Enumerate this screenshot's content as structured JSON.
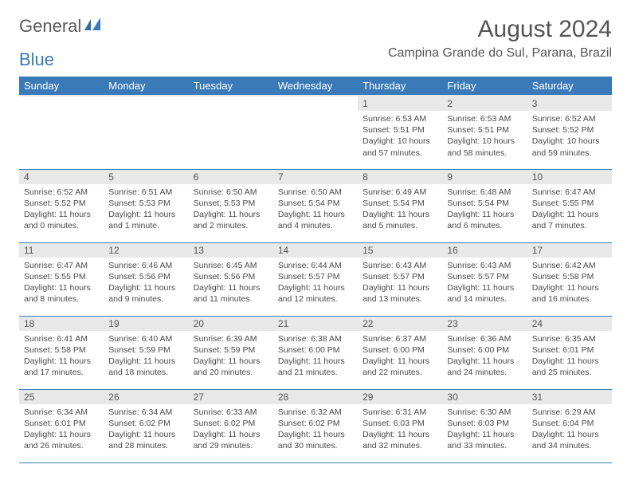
{
  "logo": {
    "word1": "General",
    "word2": "Blue"
  },
  "colors": {
    "brand_blue": "#3a7ab8",
    "header_gray": "#e8e8e8",
    "text": "#4a4a4a",
    "row_border": "#3a7ab8"
  },
  "title": "August 2024",
  "location": "Campina Grande do Sul, Parana, Brazil",
  "weekdays": [
    "Sunday",
    "Monday",
    "Tuesday",
    "Wednesday",
    "Thursday",
    "Friday",
    "Saturday"
  ],
  "weeks": [
    [
      {
        "day": "",
        "sunrise": "",
        "sunset": "",
        "daylight": ""
      },
      {
        "day": "",
        "sunrise": "",
        "sunset": "",
        "daylight": ""
      },
      {
        "day": "",
        "sunrise": "",
        "sunset": "",
        "daylight": ""
      },
      {
        "day": "",
        "sunrise": "",
        "sunset": "",
        "daylight": ""
      },
      {
        "day": "1",
        "sunrise": "Sunrise: 6:53 AM",
        "sunset": "Sunset: 5:51 PM",
        "daylight": "Daylight: 10 hours and 57 minutes."
      },
      {
        "day": "2",
        "sunrise": "Sunrise: 6:53 AM",
        "sunset": "Sunset: 5:51 PM",
        "daylight": "Daylight: 10 hours and 58 minutes."
      },
      {
        "day": "3",
        "sunrise": "Sunrise: 6:52 AM",
        "sunset": "Sunset: 5:52 PM",
        "daylight": "Daylight: 10 hours and 59 minutes."
      }
    ],
    [
      {
        "day": "4",
        "sunrise": "Sunrise: 6:52 AM",
        "sunset": "Sunset: 5:52 PM",
        "daylight": "Daylight: 11 hours and 0 minutes."
      },
      {
        "day": "5",
        "sunrise": "Sunrise: 6:51 AM",
        "sunset": "Sunset: 5:53 PM",
        "daylight": "Daylight: 11 hours and 1 minute."
      },
      {
        "day": "6",
        "sunrise": "Sunrise: 6:50 AM",
        "sunset": "Sunset: 5:53 PM",
        "daylight": "Daylight: 11 hours and 2 minutes."
      },
      {
        "day": "7",
        "sunrise": "Sunrise: 6:50 AM",
        "sunset": "Sunset: 5:54 PM",
        "daylight": "Daylight: 11 hours and 4 minutes."
      },
      {
        "day": "8",
        "sunrise": "Sunrise: 6:49 AM",
        "sunset": "Sunset: 5:54 PM",
        "daylight": "Daylight: 11 hours and 5 minutes."
      },
      {
        "day": "9",
        "sunrise": "Sunrise: 6:48 AM",
        "sunset": "Sunset: 5:54 PM",
        "daylight": "Daylight: 11 hours and 6 minutes."
      },
      {
        "day": "10",
        "sunrise": "Sunrise: 6:47 AM",
        "sunset": "Sunset: 5:55 PM",
        "daylight": "Daylight: 11 hours and 7 minutes."
      }
    ],
    [
      {
        "day": "11",
        "sunrise": "Sunrise: 6:47 AM",
        "sunset": "Sunset: 5:55 PM",
        "daylight": "Daylight: 11 hours and 8 minutes."
      },
      {
        "day": "12",
        "sunrise": "Sunrise: 6:46 AM",
        "sunset": "Sunset: 5:56 PM",
        "daylight": "Daylight: 11 hours and 9 minutes."
      },
      {
        "day": "13",
        "sunrise": "Sunrise: 6:45 AM",
        "sunset": "Sunset: 5:56 PM",
        "daylight": "Daylight: 11 hours and 11 minutes."
      },
      {
        "day": "14",
        "sunrise": "Sunrise: 6:44 AM",
        "sunset": "Sunset: 5:57 PM",
        "daylight": "Daylight: 11 hours and 12 minutes."
      },
      {
        "day": "15",
        "sunrise": "Sunrise: 6:43 AM",
        "sunset": "Sunset: 5:57 PM",
        "daylight": "Daylight: 11 hours and 13 minutes."
      },
      {
        "day": "16",
        "sunrise": "Sunrise: 6:43 AM",
        "sunset": "Sunset: 5:57 PM",
        "daylight": "Daylight: 11 hours and 14 minutes."
      },
      {
        "day": "17",
        "sunrise": "Sunrise: 6:42 AM",
        "sunset": "Sunset: 5:58 PM",
        "daylight": "Daylight: 11 hours and 16 minutes."
      }
    ],
    [
      {
        "day": "18",
        "sunrise": "Sunrise: 6:41 AM",
        "sunset": "Sunset: 5:58 PM",
        "daylight": "Daylight: 11 hours and 17 minutes."
      },
      {
        "day": "19",
        "sunrise": "Sunrise: 6:40 AM",
        "sunset": "Sunset: 5:59 PM",
        "daylight": "Daylight: 11 hours and 18 minutes."
      },
      {
        "day": "20",
        "sunrise": "Sunrise: 6:39 AM",
        "sunset": "Sunset: 5:59 PM",
        "daylight": "Daylight: 11 hours and 20 minutes."
      },
      {
        "day": "21",
        "sunrise": "Sunrise: 6:38 AM",
        "sunset": "Sunset: 6:00 PM",
        "daylight": "Daylight: 11 hours and 21 minutes."
      },
      {
        "day": "22",
        "sunrise": "Sunrise: 6:37 AM",
        "sunset": "Sunset: 6:00 PM",
        "daylight": "Daylight: 11 hours and 22 minutes."
      },
      {
        "day": "23",
        "sunrise": "Sunrise: 6:36 AM",
        "sunset": "Sunset: 6:00 PM",
        "daylight": "Daylight: 11 hours and 24 minutes."
      },
      {
        "day": "24",
        "sunrise": "Sunrise: 6:35 AM",
        "sunset": "Sunset: 6:01 PM",
        "daylight": "Daylight: 11 hours and 25 minutes."
      }
    ],
    [
      {
        "day": "25",
        "sunrise": "Sunrise: 6:34 AM",
        "sunset": "Sunset: 6:01 PM",
        "daylight": "Daylight: 11 hours and 26 minutes."
      },
      {
        "day": "26",
        "sunrise": "Sunrise: 6:34 AM",
        "sunset": "Sunset: 6:02 PM",
        "daylight": "Daylight: 11 hours and 28 minutes."
      },
      {
        "day": "27",
        "sunrise": "Sunrise: 6:33 AM",
        "sunset": "Sunset: 6:02 PM",
        "daylight": "Daylight: 11 hours and 29 minutes."
      },
      {
        "day": "28",
        "sunrise": "Sunrise: 6:32 AM",
        "sunset": "Sunset: 6:02 PM",
        "daylight": "Daylight: 11 hours and 30 minutes."
      },
      {
        "day": "29",
        "sunrise": "Sunrise: 6:31 AM",
        "sunset": "Sunset: 6:03 PM",
        "daylight": "Daylight: 11 hours and 32 minutes."
      },
      {
        "day": "30",
        "sunrise": "Sunrise: 6:30 AM",
        "sunset": "Sunset: 6:03 PM",
        "daylight": "Daylight: 11 hours and 33 minutes."
      },
      {
        "day": "31",
        "sunrise": "Sunrise: 6:29 AM",
        "sunset": "Sunset: 6:04 PM",
        "daylight": "Daylight: 11 hours and 34 minutes."
      }
    ]
  ]
}
